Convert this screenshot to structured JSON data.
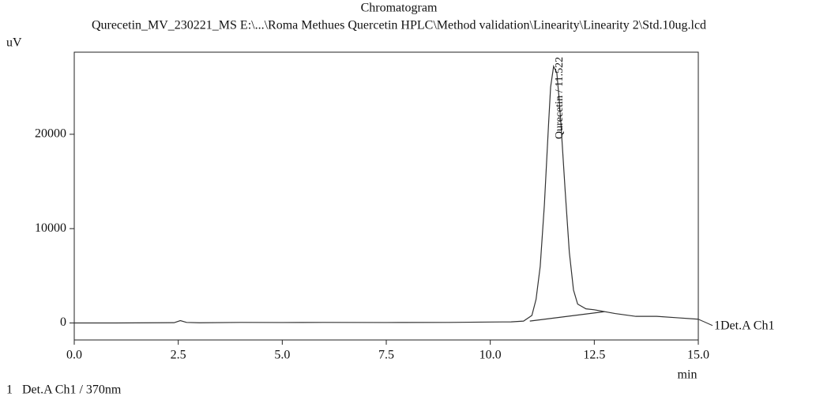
{
  "chart_data": {
    "type": "line",
    "title": "Chromatogram",
    "subtitle": "Qurecetin_MV_230221_MS E:\\...\\Roma Methues Quercetin HPLC\\Method validation\\Linearity\\Linearity 2\\Std.10ug.lcd",
    "y_label": "uV",
    "x_label": "min",
    "footer": "1   Det.A Ch1 / 370nm",
    "annotation": "Qurecetin / 11.522",
    "x": [
      0,
      1,
      2,
      2.4,
      2.55,
      2.7,
      3,
      4,
      5,
      6,
      7.5,
      9,
      10,
      10.5,
      10.8,
      11.0,
      11.1,
      11.2,
      11.3,
      11.4,
      11.45,
      11.522,
      11.6,
      11.65,
      11.7,
      11.8,
      11.9,
      12.0,
      12.1,
      12.3,
      12.5,
      12.75,
      13.0,
      13.5,
      14.0,
      14.5,
      15.0
    ],
    "series": [
      {
        "name": "1Det.A Ch1",
        "color": "#333333",
        "values": [
          0,
          0,
          20,
          30,
          250,
          60,
          20,
          60,
          50,
          60,
          50,
          60,
          100,
          120,
          200,
          800,
          2500,
          6000,
          12500,
          21000,
          25000,
          27200,
          26500,
          24000,
          21000,
          14000,
          7500,
          3500,
          2000,
          1500,
          1400,
          1200,
          1000,
          700,
          700,
          550,
          400
        ]
      },
      {
        "color": "#333333",
        "x": [
          10.95,
          12.75
        ],
        "values": [
          200,
          1200
        ]
      }
    ],
    "xlim": [
      0,
      15
    ],
    "ylim": [
      -1800,
      28700
    ],
    "xticks": [
      {
        "value": 0,
        "label": "0.0"
      },
      {
        "value": 2.5,
        "label": "2.5"
      },
      {
        "value": 5,
        "label": "5.0"
      },
      {
        "value": 7.5,
        "label": "7.5"
      },
      {
        "value": 10,
        "label": "10.0"
      },
      {
        "value": 12.5,
        "label": "12.5"
      },
      {
        "value": 15,
        "label": "15.0"
      }
    ],
    "yticks": [
      0,
      10000,
      20000
    ]
  }
}
